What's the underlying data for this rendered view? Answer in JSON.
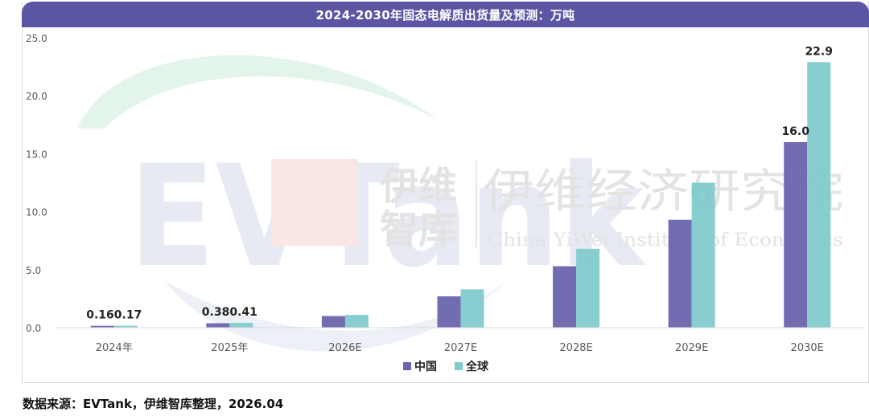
{
  "chart_data": {
    "type": "bar",
    "title": "2024-2030年固态电解质出货量及预测：万吨",
    "categories": [
      "2024年",
      "2025年",
      "2026E",
      "2027E",
      "2028E",
      "2029E",
      "2030E"
    ],
    "series": [
      {
        "name": "中国",
        "color": "#6a64ad",
        "values": [
          0.16,
          0.38,
          1.0,
          2.7,
          5.3,
          9.3,
          16.0
        ]
      },
      {
        "name": "全球",
        "color": "#7ecacc",
        "values": [
          0.17,
          0.41,
          1.1,
          3.3,
          6.8,
          12.5,
          22.9
        ]
      }
    ],
    "data_labels": [
      "0.160.17",
      "0.380.41",
      "",
      "",
      "",
      "",
      "16.0",
      "22.9"
    ],
    "ylim": [
      0,
      25
    ],
    "yticks": [
      "0.0",
      "5.0",
      "10.0",
      "15.0",
      "20.0",
      "25.0"
    ],
    "legend_position": "bottom",
    "grid": false
  },
  "watermark": {
    "logo": "EVTank",
    "cn_short_1": "伊维",
    "cn_short_2": "智库",
    "cn_long": "伊维经济研究院",
    "en_long": "China YiWei Institute of Economics"
  },
  "source_note": "数据来源：EVTank，伊维智库整理，2026.04"
}
